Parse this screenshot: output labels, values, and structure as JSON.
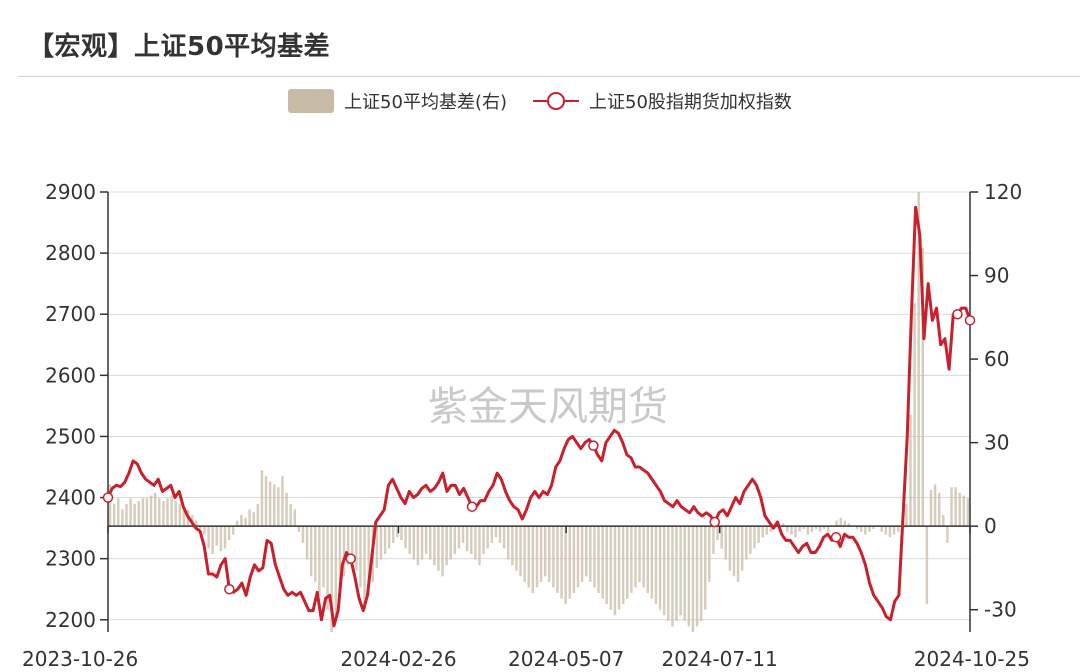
{
  "title": "【宏观】上证50平均基差",
  "watermark": "紫金天风期货",
  "chart_data": {
    "type": "bar+line",
    "title": "【宏观】上证50平均基差",
    "legend_position": "top-center",
    "grid": true,
    "colors": {
      "line": "#c8202c",
      "bar": "#c8bba6",
      "grid": "#d9d9d9",
      "axis": "#333333"
    },
    "series": [
      {
        "name": "上证50平均基差(右)",
        "kind": "bar",
        "axis": "right"
      },
      {
        "name": "上证50股指期货加权指数",
        "kind": "line",
        "axis": "left"
      }
    ],
    "x_range": [
      "2023-10-26",
      "2024-10-25"
    ],
    "x_ticks": [
      "2023-10-26",
      "2024-02-26",
      "2024-05-07",
      "2024-07-11",
      "2024-10-25"
    ],
    "y_left": {
      "min": 2180,
      "max": 2900,
      "ticks": [
        2200,
        2300,
        2400,
        2500,
        2600,
        2700,
        2800,
        2900
      ]
    },
    "y_right": {
      "min": -38,
      "max": 120,
      "ticks": [
        -30,
        0,
        30,
        60,
        90,
        120
      ]
    },
    "line_values": [
      2400,
      2415,
      2420,
      2418,
      2425,
      2440,
      2460,
      2455,
      2440,
      2430,
      2425,
      2420,
      2430,
      2410,
      2415,
      2420,
      2400,
      2410,
      2385,
      2370,
      2360,
      2350,
      2345,
      2320,
      2275,
      2275,
      2270,
      2290,
      2300,
      2250,
      2245,
      2250,
      2260,
      2240,
      2270,
      2290,
      2280,
      2285,
      2330,
      2325,
      2290,
      2270,
      2250,
      2240,
      2245,
      2240,
      2245,
      2230,
      2215,
      2215,
      2245,
      2200,
      2235,
      2240,
      2190,
      2215,
      2290,
      2310,
      2300,
      2270,
      2235,
      2215,
      2240,
      2300,
      2360,
      2370,
      2380,
      2420,
      2430,
      2415,
      2400,
      2390,
      2410,
      2400,
      2405,
      2415,
      2420,
      2410,
      2415,
      2425,
      2440,
      2410,
      2420,
      2420,
      2405,
      2415,
      2400,
      2385,
      2385,
      2395,
      2395,
      2410,
      2420,
      2440,
      2430,
      2410,
      2395,
      2385,
      2380,
      2365,
      2380,
      2400,
      2410,
      2400,
      2410,
      2405,
      2420,
      2450,
      2460,
      2480,
      2495,
      2500,
      2490,
      2480,
      2490,
      2495,
      2485,
      2470,
      2460,
      2490,
      2500,
      2510,
      2505,
      2490,
      2470,
      2465,
      2450,
      2450,
      2445,
      2440,
      2430,
      2420,
      2410,
      2395,
      2390,
      2385,
      2395,
      2385,
      2380,
      2375,
      2385,
      2375,
      2370,
      2375,
      2370,
      2360,
      2375,
      2380,
      2370,
      2385,
      2400,
      2390,
      2410,
      2420,
      2430,
      2420,
      2400,
      2370,
      2360,
      2350,
      2360,
      2340,
      2330,
      2330,
      2320,
      2310,
      2320,
      2325,
      2310,
      2310,
      2320,
      2335,
      2340,
      2330,
      2335,
      2320,
      2340,
      2335,
      2335,
      2325,
      2310,
      2290,
      2260,
      2240,
      2230,
      2220,
      2205,
      2200,
      2230,
      2240,
      2370,
      2500,
      2700,
      2875,
      2830,
      2660,
      2750,
      2690,
      2710,
      2650,
      2660,
      2610,
      2700,
      2700,
      2710,
      2710,
      2690
    ],
    "bar_values": [
      15,
      8,
      10,
      6,
      8,
      10,
      8,
      9,
      10,
      10,
      11,
      12,
      10,
      9,
      10,
      11,
      9,
      8,
      7,
      6,
      4,
      2,
      -1,
      -3,
      -8,
      -10,
      -7,
      -9,
      -8,
      -5,
      -3,
      2,
      4,
      3,
      6,
      5,
      8,
      20,
      18,
      16,
      15,
      14,
      18,
      12,
      8,
      6,
      -2,
      -6,
      -12,
      -18,
      -20,
      -25,
      -22,
      -30,
      -38,
      -34,
      -26,
      -18,
      -14,
      -10,
      -16,
      -22,
      -30,
      -25,
      -20,
      -15,
      -12,
      -10,
      -8,
      -6,
      -4,
      -5,
      -8,
      -10,
      -12,
      -14,
      -12,
      -10,
      -12,
      -14,
      -16,
      -18,
      -14,
      -12,
      -10,
      -8,
      -6,
      -9,
      -10,
      -12,
      -14,
      -10,
      -8,
      -6,
      -4,
      -6,
      -8,
      -12,
      -14,
      -16,
      -18,
      -20,
      -22,
      -24,
      -22,
      -20,
      -18,
      -20,
      -22,
      -24,
      -26,
      -28,
      -26,
      -24,
      -22,
      -20,
      -18,
      -20,
      -22,
      -24,
      -26,
      -28,
      -30,
      -32,
      -30,
      -28,
      -26,
      -24,
      -22,
      -20,
      -22,
      -24,
      -26,
      -28,
      -30,
      -32,
      -34,
      -36,
      -34,
      -32,
      -34,
      -36,
      -38,
      -36,
      -34,
      -30,
      -20,
      -10,
      -5,
      -8,
      -12,
      -16,
      -18,
      -20,
      -16,
      -12,
      -10,
      -8,
      -6,
      -4,
      -3,
      -2,
      -1,
      0,
      1,
      -2,
      -3,
      -4,
      -2,
      -1,
      -3,
      -2,
      -1,
      -2,
      -1,
      -2,
      0,
      2,
      3,
      2,
      1,
      0,
      -1,
      -2,
      -3,
      -2,
      -1,
      0,
      -2,
      -3,
      -4,
      -3,
      -2,
      2,
      8,
      40,
      80,
      120,
      100,
      -28,
      13,
      15,
      12,
      4,
      -6,
      14,
      14,
      12,
      11,
      10
    ]
  }
}
